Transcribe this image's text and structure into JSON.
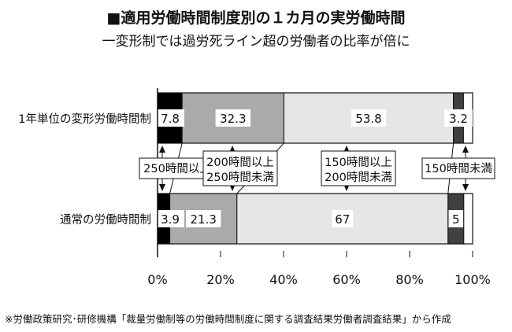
{
  "header": {
    "title": "■適用労働時間制度別の１カ月の実労働時間",
    "subtitle": "一変形制では過労死ライン超の労働者の比率が倍に"
  },
  "source": "※労働政策研究･研修機構「裁量労働制等の労働時間制度に関する調査結果労働者調査結果」から作成",
  "chart_data": {
    "type": "bar",
    "orientation": "horizontal",
    "stacked": true,
    "percent_stacked": true,
    "categories": [
      "1年単位の変形労働時間制",
      "通常の労働時間制"
    ],
    "series": [
      {
        "name": "250時間以上",
        "values": [
          7.8,
          3.9
        ],
        "color": "#000000"
      },
      {
        "name": "200時間以上\n250時間未満",
        "values": [
          32.3,
          21.3
        ],
        "color": "#aaaaaa"
      },
      {
        "name": "150時間以上\n200時間未満",
        "values": [
          53.8,
          67
        ],
        "color": "#e6e6e6"
      },
      {
        "name": "150時間未満",
        "values": [
          3.2,
          5
        ],
        "color": "#404040"
      }
    ],
    "data_labels": [
      [
        "7.8",
        "32.3",
        "53.8",
        "3.2"
      ],
      [
        "3.9",
        "21.3",
        "67",
        "5"
      ]
    ],
    "xlim": [
      0,
      100
    ],
    "xticks": [
      "0%",
      "20%",
      "40%",
      "60%",
      "80%",
      "100%"
    ],
    "grid": false,
    "legend": "between-bars"
  }
}
